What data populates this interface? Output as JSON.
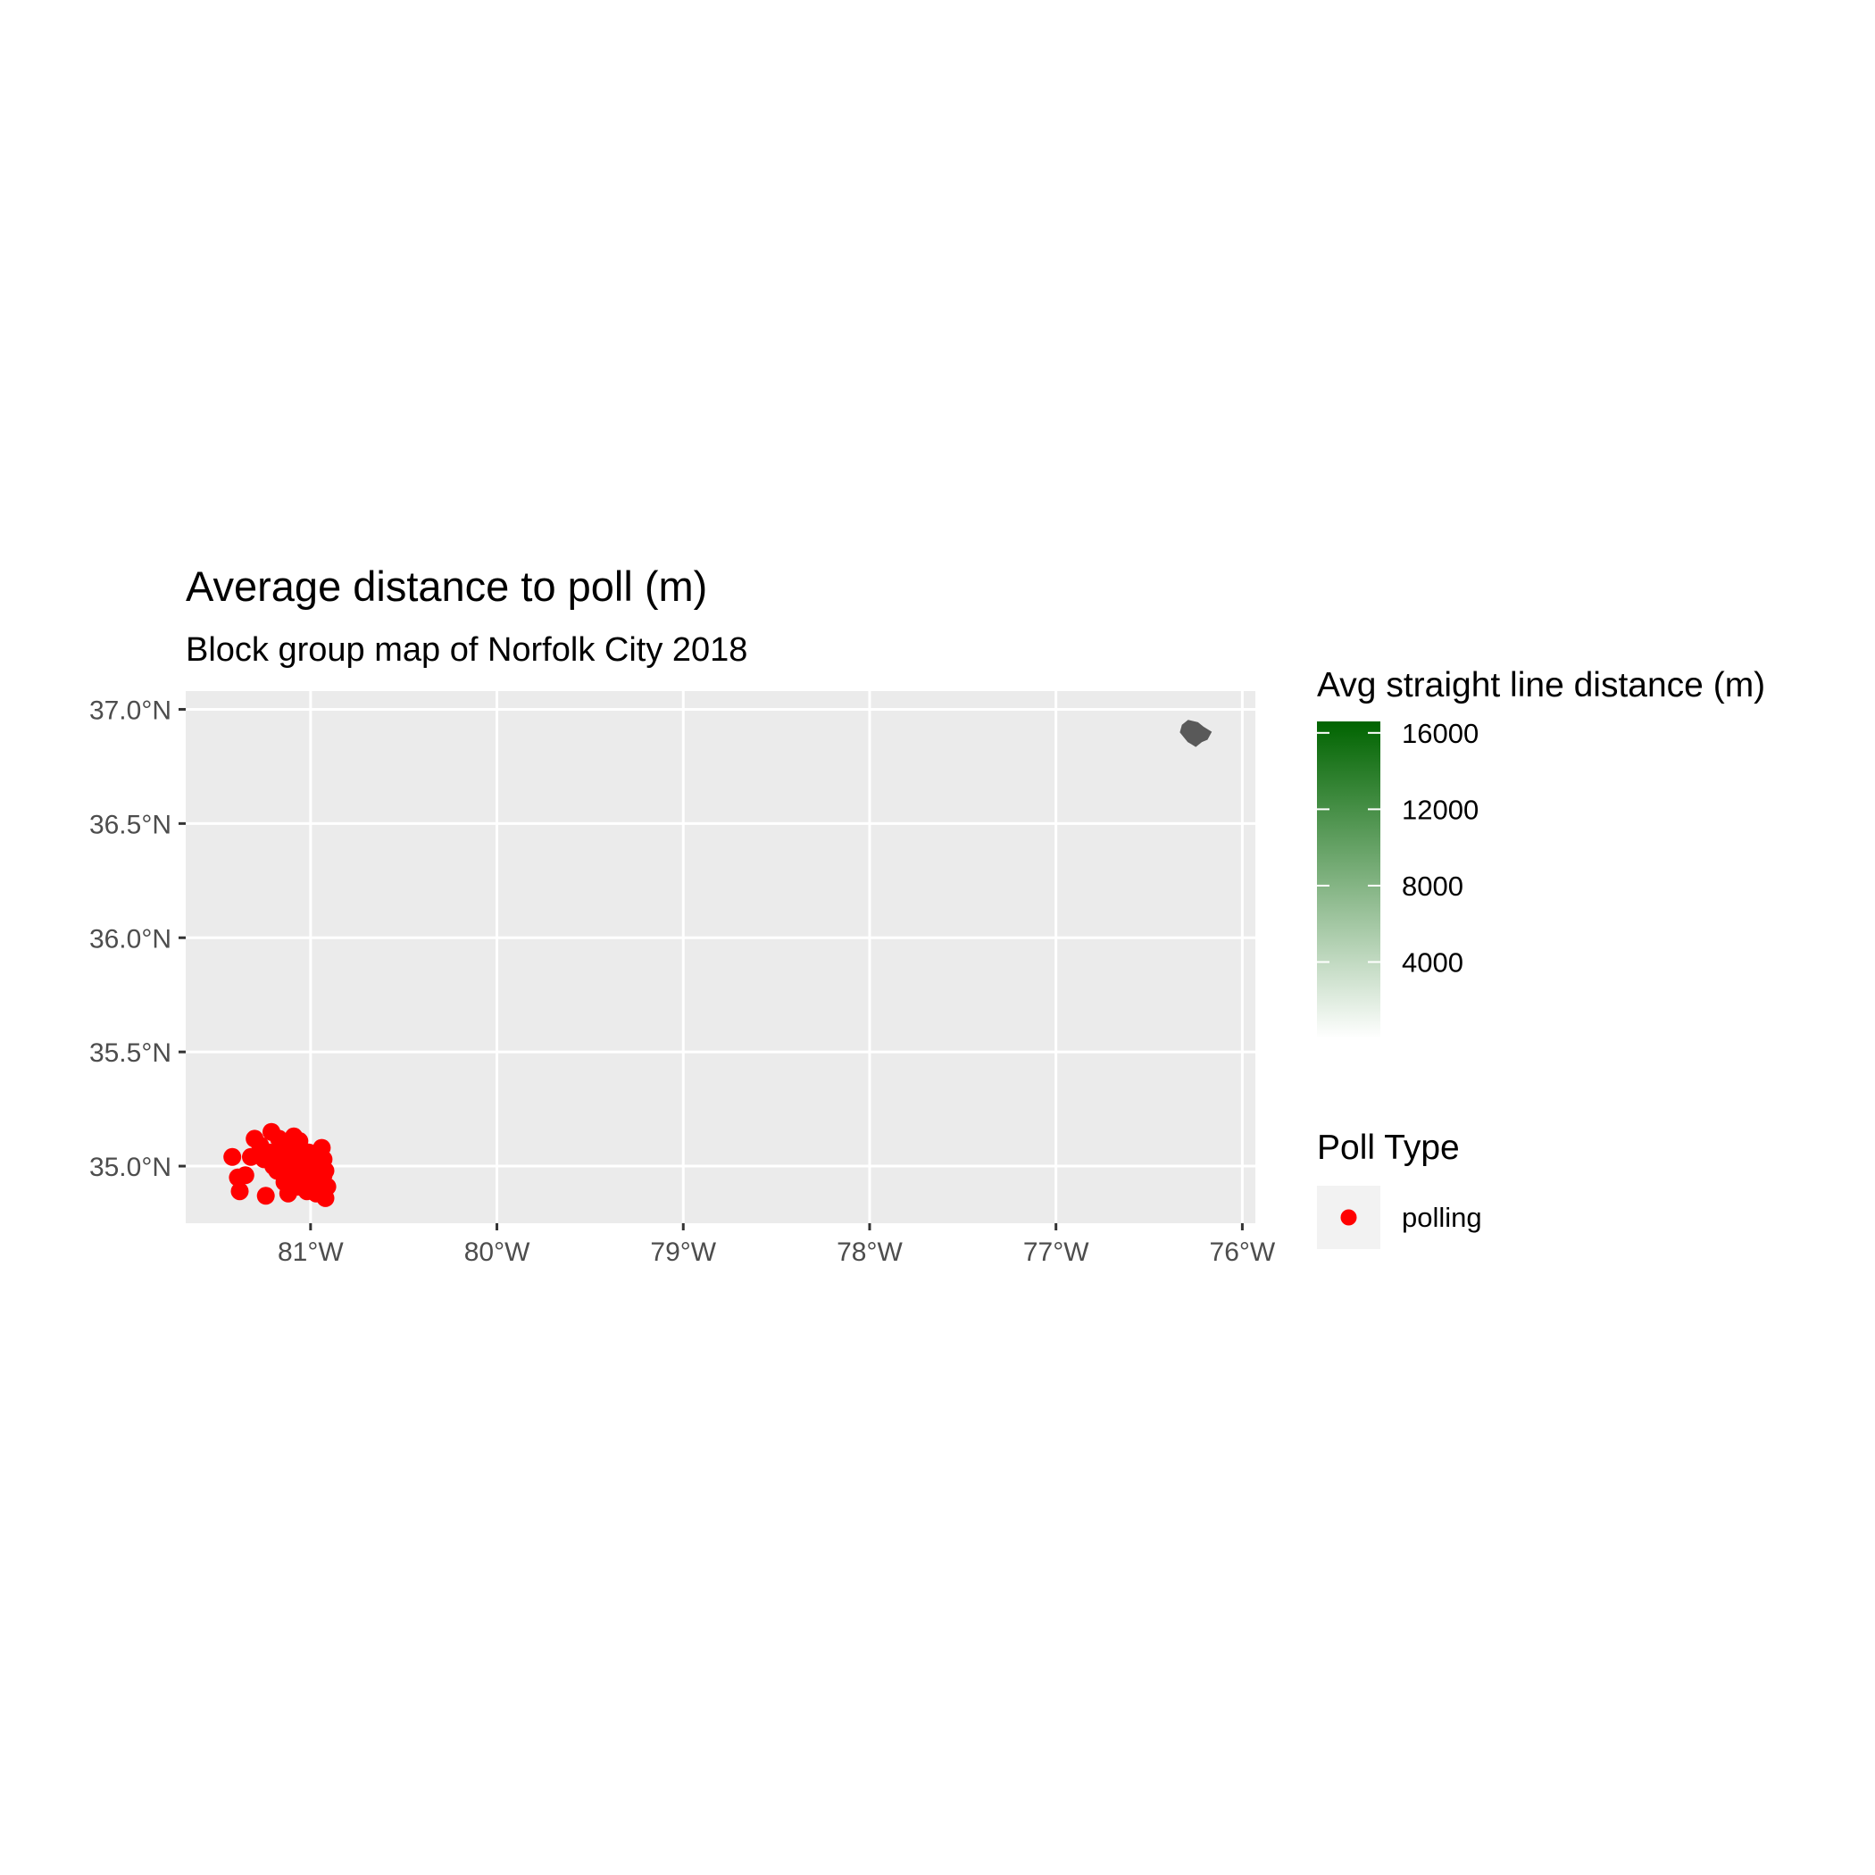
{
  "chart_data": {
    "type": "scatter",
    "title": "Average distance to poll (m)",
    "subtitle": "Block group map of Norfolk City 2018",
    "xlabel": "",
    "ylabel": "",
    "x_ticks": [
      "81°W",
      "80°W",
      "79°W",
      "78°W",
      "77°W",
      "76°W"
    ],
    "x_tick_values": [
      -81,
      -80,
      -79,
      -78,
      -77,
      -76
    ],
    "y_ticks": [
      "37.0°N",
      "36.5°N",
      "36.0°N",
      "35.5°N",
      "35.0°N"
    ],
    "y_tick_values": [
      37.0,
      36.5,
      36.0,
      35.5,
      35.0
    ],
    "xlim": [
      -81.67,
      -75.93
    ],
    "ylim": [
      34.75,
      37.08
    ],
    "grid": true,
    "panel_background": "#EBEBEB",
    "fill_legend": {
      "title": "Avg straight line distance (m)",
      "labels": [
        "16000",
        "12000",
        "8000",
        "4000"
      ],
      "values": [
        16000,
        12000,
        8000,
        4000
      ],
      "range": [
        0,
        16600
      ],
      "low_color": "#FFFFFF",
      "high_color": "#006400"
    },
    "shape_legend": {
      "title": "Poll Type",
      "entries": [
        {
          "label": "polling",
          "color": "#FF0000"
        }
      ]
    },
    "region": {
      "name": "Norfolk City",
      "fill": "#595959",
      "outline": [
        [
          -76.32,
          36.93
        ],
        [
          -76.29,
          36.95
        ],
        [
          -76.24,
          36.94
        ],
        [
          -76.21,
          36.92
        ],
        [
          -76.17,
          36.9
        ],
        [
          -76.19,
          36.87
        ],
        [
          -76.22,
          36.86
        ],
        [
          -76.25,
          36.84
        ],
        [
          -76.27,
          36.85
        ],
        [
          -76.29,
          36.86
        ],
        [
          -76.31,
          36.88
        ],
        [
          -76.33,
          36.9
        ]
      ]
    },
    "series": [
      {
        "name": "polling",
        "color": "#FF0000",
        "points": [
          [
            -81.42,
            35.04
          ],
          [
            -81.39,
            34.95
          ],
          [
            -81.38,
            34.89
          ],
          [
            -81.35,
            34.96
          ],
          [
            -81.32,
            35.04
          ],
          [
            -81.3,
            35.12
          ],
          [
            -81.27,
            35.09
          ],
          [
            -81.25,
            35.03
          ],
          [
            -81.24,
            34.87
          ],
          [
            -81.21,
            35.15
          ],
          [
            -81.2,
            35.0
          ],
          [
            -81.18,
            34.98
          ],
          [
            -81.16,
            35.06
          ],
          [
            -81.15,
            35.02
          ],
          [
            -81.14,
            34.93
          ],
          [
            -81.13,
            35.1
          ],
          [
            -81.12,
            34.88
          ],
          [
            -81.11,
            35.04
          ],
          [
            -81.1,
            34.96
          ],
          [
            -81.09,
            35.13
          ],
          [
            -81.08,
            35.01
          ],
          [
            -81.07,
            34.91
          ],
          [
            -81.06,
            35.07
          ],
          [
            -81.05,
            34.98
          ],
          [
            -81.04,
            34.94
          ],
          [
            -81.03,
            35.03
          ],
          [
            -81.02,
            34.89
          ],
          [
            -81.01,
            35.06
          ],
          [
            -81.0,
            34.97
          ],
          [
            -80.99,
            35.01
          ],
          [
            -80.98,
            34.93
          ],
          [
            -80.97,
            35.05
          ],
          [
            -80.96,
            34.99
          ],
          [
            -80.95,
            34.91
          ],
          [
            -80.94,
            35.08
          ],
          [
            -80.93,
            34.96
          ],
          [
            -80.93,
            35.03
          ],
          [
            -80.92,
            34.86
          ],
          [
            -80.92,
            34.98
          ],
          [
            -80.91,
            34.91
          ],
          [
            -81.17,
            35.12
          ],
          [
            -81.11,
            34.99
          ],
          [
            -81.06,
            35.11
          ],
          [
            -81.01,
            34.93
          ],
          [
            -80.97,
            34.88
          ],
          [
            -81.22,
            35.06
          ]
        ]
      }
    ]
  }
}
